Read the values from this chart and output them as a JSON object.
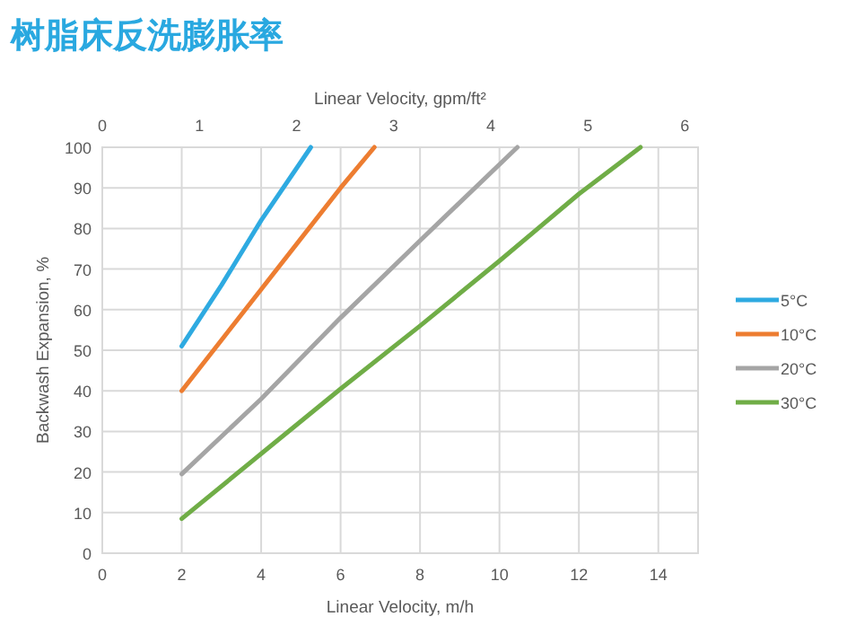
{
  "chart_data": {
    "type": "line",
    "title": "树脂床反洗膨胀率",
    "xlabel": "Linear Velocity, m/h",
    "ylabel": "Backwash Expansion, %",
    "x2label": "Linear Velocity, gpm/ft²",
    "xlim": [
      0,
      15
    ],
    "xticks": [
      0,
      2,
      4,
      6,
      8,
      10,
      12,
      14
    ],
    "x2lim": [
      0,
      6.135
    ],
    "x2ticks": [
      0,
      1,
      2,
      3,
      4,
      5,
      6
    ],
    "ylim": [
      0,
      100
    ],
    "yticks": [
      0,
      10,
      20,
      30,
      40,
      50,
      60,
      70,
      80,
      90,
      100
    ],
    "grid": true,
    "legend": "right",
    "series": [
      {
        "name": "5°C",
        "color": "#2eaae1",
        "x": [
          2,
          3,
          4,
          5.25
        ],
        "values": [
          51,
          66,
          82,
          100
        ]
      },
      {
        "name": "10°C",
        "color": "#ed7d31",
        "x": [
          2,
          4,
          6,
          6.85
        ],
        "values": [
          40,
          65,
          90,
          100
        ]
      },
      {
        "name": "20°C",
        "color": "#a5a5a5",
        "x": [
          2,
          4,
          6,
          8,
          10.45
        ],
        "values": [
          19.5,
          38,
          58,
          77,
          100
        ]
      },
      {
        "name": "30°C",
        "color": "#70ad47",
        "x": [
          2,
          4,
          6,
          8,
          10,
          12,
          13.55
        ],
        "values": [
          8.5,
          24.5,
          40.5,
          56,
          72,
          88.5,
          100
        ]
      }
    ]
  }
}
